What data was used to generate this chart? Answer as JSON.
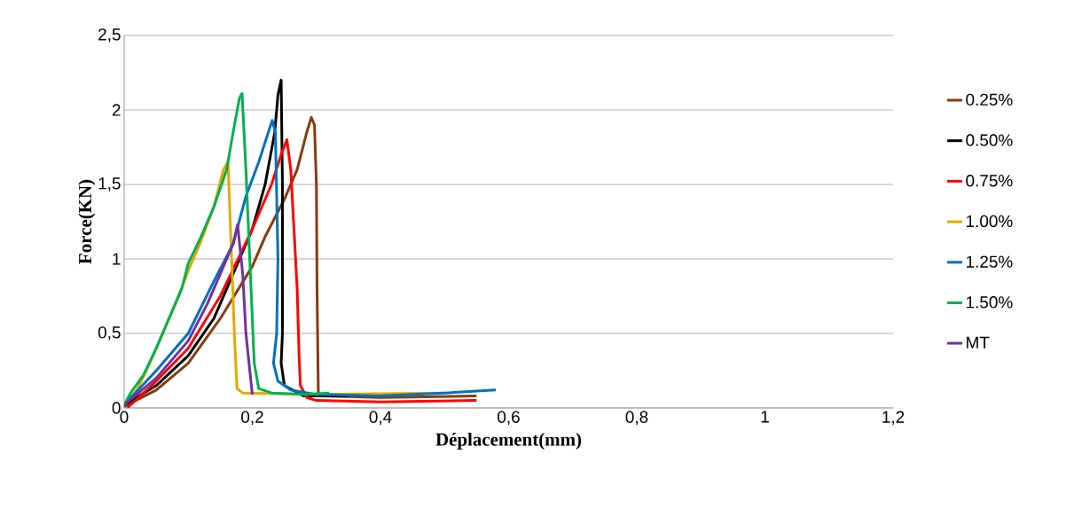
{
  "chart_data": {
    "type": "line",
    "xlabel": "Déplacement(mm)",
    "ylabel": "Force(KN)",
    "xlim": [
      0,
      1.2
    ],
    "ylim": [
      0,
      2.5
    ],
    "xticks": [
      0,
      {
        "value": 0.2,
        "label": "0,2"
      },
      {
        "value": 0.4,
        "label": "0,4"
      },
      {
        "value": 0.6,
        "label": "0,6"
      },
      {
        "value": 0.8,
        "label": "0,8"
      },
      1,
      {
        "value": 1.2,
        "label": "1,2"
      }
    ],
    "yticks": [
      0,
      {
        "value": 0.5,
        "label": "0,5"
      },
      1,
      {
        "value": 1.5,
        "label": "1,5"
      },
      2,
      {
        "value": 2.5,
        "label": "2,5"
      }
    ],
    "grid": "y",
    "legend": "right",
    "marker": "none",
    "line_style": "solid",
    "series": [
      {
        "name": "0.25%",
        "color": "#843c0c",
        "x": [
          0,
          0.05,
          0.1,
          0.15,
          0.2,
          0.22,
          0.25,
          0.27,
          0.285,
          0.292,
          0.297,
          0.3,
          0.301,
          0.303,
          0.31,
          0.4,
          0.55
        ],
        "values": [
          0.01,
          0.12,
          0.3,
          0.6,
          0.95,
          1.15,
          1.4,
          1.6,
          1.85,
          1.95,
          1.9,
          1.5,
          0.8,
          0.1,
          0.08,
          0.07,
          0.08
        ]
      },
      {
        "name": "0.50%",
        "color": "#000000",
        "x": [
          0,
          0.05,
          0.1,
          0.14,
          0.17,
          0.2,
          0.22,
          0.235,
          0.24,
          0.245,
          0.247,
          0.247,
          0.245,
          0.25,
          0.28,
          0.35
        ],
        "values": [
          0.02,
          0.15,
          0.35,
          0.6,
          0.9,
          1.2,
          1.5,
          1.85,
          2.1,
          2.2,
          1.5,
          0.5,
          0.3,
          0.15,
          0.08,
          0.08
        ]
      },
      {
        "name": "0.75%",
        "color": "#ff0000",
        "x": [
          0.005,
          0.05,
          0.1,
          0.15,
          0.2,
          0.23,
          0.245,
          0.254,
          0.26,
          0.265,
          0.27,
          0.273,
          0.275,
          0.285,
          0.3,
          0.4,
          0.55
        ],
        "values": [
          0,
          0.18,
          0.4,
          0.75,
          1.2,
          1.5,
          1.7,
          1.8,
          1.6,
          1.2,
          0.8,
          0.35,
          0.15,
          0.07,
          0.05,
          0.04,
          0.05
        ]
      },
      {
        "name": "1.00%",
        "color": "#e6a800",
        "x": [
          0,
          0.02,
          0.04,
          0.06,
          0.08,
          0.1,
          0.12,
          0.14,
          0.155,
          0.162,
          0.166,
          0.172,
          0.176,
          0.185,
          0.3,
          0.5
        ],
        "values": [
          0.02,
          0.12,
          0.3,
          0.5,
          0.7,
          0.92,
          1.12,
          1.35,
          1.6,
          1.65,
          1.2,
          0.5,
          0.13,
          0.1,
          0.09,
          0.1
        ]
      },
      {
        "name": "1.25%",
        "color": "#0070c0",
        "x": [
          0,
          0.05,
          0.1,
          0.14,
          0.17,
          0.19,
          0.21,
          0.225,
          0.231,
          0.236,
          0.24,
          0.238,
          0.233,
          0.24,
          0.26,
          0.3,
          0.4,
          0.5,
          0.58
        ],
        "values": [
          0.02,
          0.25,
          0.5,
          0.85,
          1.1,
          1.42,
          1.65,
          1.85,
          1.93,
          1.85,
          1.0,
          0.5,
          0.3,
          0.18,
          0.12,
          0.09,
          0.08,
          0.1,
          0.12
        ]
      },
      {
        "name": "1.50%",
        "color": "#00b050",
        "x": [
          0,
          0.01,
          0.03,
          0.05,
          0.07,
          0.09,
          0.1,
          0.12,
          0.14,
          0.16,
          0.17,
          0.18,
          0.184,
          0.19,
          0.197,
          0.203,
          0.21,
          0.23,
          0.28,
          0.32
        ],
        "values": [
          0.02,
          0.1,
          0.22,
          0.4,
          0.6,
          0.8,
          0.97,
          1.15,
          1.35,
          1.6,
          1.85,
          2.08,
          2.11,
          1.6,
          0.9,
          0.3,
          0.13,
          0.1,
          0.09,
          0.1
        ]
      },
      {
        "name": "MT",
        "color": "#7030a0",
        "x": [
          0,
          0.05,
          0.1,
          0.13,
          0.15,
          0.17,
          0.177,
          0.185,
          0.19,
          0.2
        ],
        "values": [
          0.02,
          0.2,
          0.45,
          0.7,
          0.9,
          1.1,
          1.23,
          0.9,
          0.5,
          0.09
        ]
      }
    ]
  }
}
